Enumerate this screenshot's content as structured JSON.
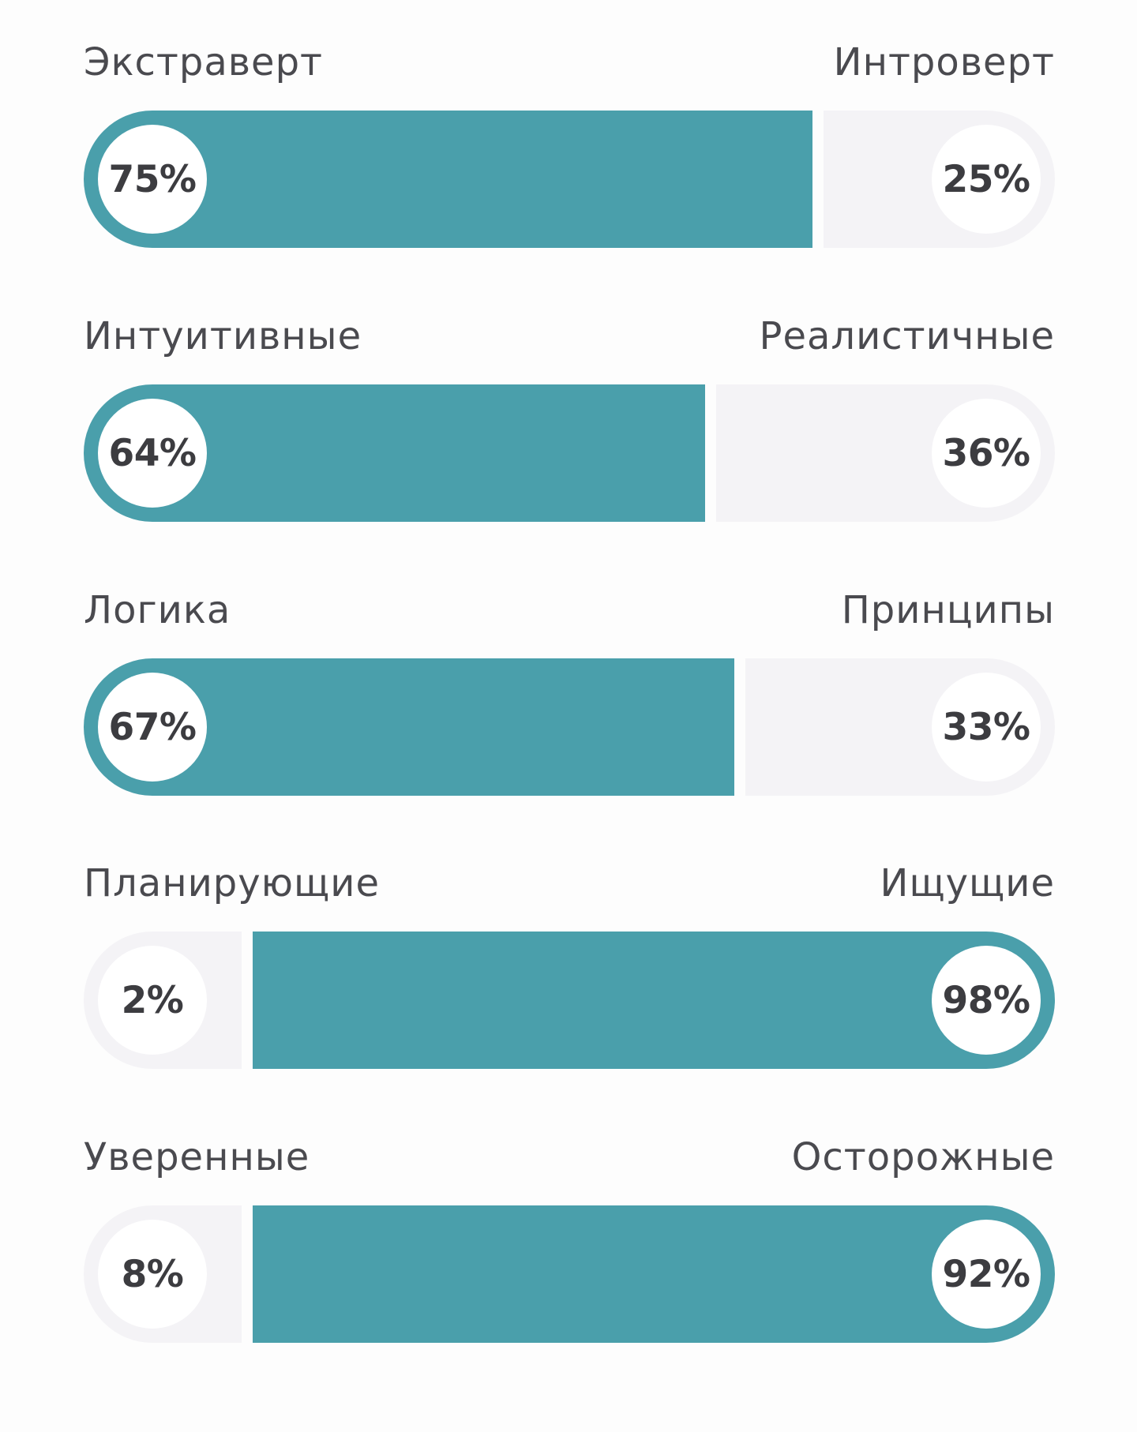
{
  "colors": {
    "accent": "#4a9fab",
    "track": "#f4f3f6",
    "background": "#fdfdfd",
    "label_text": "#4a4a4f",
    "percent_text": "#3c3c40"
  },
  "chart_data": {
    "type": "bar",
    "orientation": "horizontal-stacked",
    "rows": [
      {
        "left_label": "Экстраверт",
        "right_label": "Интроверт",
        "left_pct": "75%",
        "right_pct": "25%",
        "left_value": 75,
        "right_value": 25
      },
      {
        "left_label": "Интуитивные",
        "right_label": "Реалистичные",
        "left_pct": "64%",
        "right_pct": "36%",
        "left_value": 64,
        "right_value": 36
      },
      {
        "left_label": "Логика",
        "right_label": "Принципы",
        "left_pct": "67%",
        "right_pct": "33%",
        "left_value": 67,
        "right_value": 33
      },
      {
        "left_label": "Планирующие",
        "right_label": "Ищущие",
        "left_pct": "2%",
        "right_pct": "98%",
        "left_value": 2,
        "right_value": 98
      },
      {
        "left_label": "Уверенные",
        "right_label": "Осторожные",
        "left_pct": "8%",
        "right_pct": "92%",
        "left_value": 8,
        "right_value": 92
      }
    ]
  }
}
